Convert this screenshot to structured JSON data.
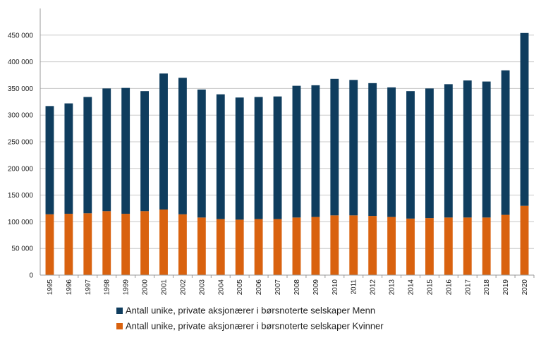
{
  "chart_data": {
    "type": "bar",
    "stacked": true,
    "categories": [
      "1995",
      "1996",
      "1997",
      "1998",
      "1999",
      "2000",
      "2001",
      "2002",
      "2003",
      "2004",
      "2005",
      "2006",
      "2007",
      "2008",
      "2009",
      "2010",
      "2011",
      "2012",
      "2013",
      "2014",
      "2015",
      "2016",
      "2017",
      "2018",
      "2019",
      "2020"
    ],
    "series": [
      {
        "name": "Antall unike, private aksjonærer i børsnoterte selskaper Kvinner",
        "color": "#d9620f",
        "values": [
          114000,
          115000,
          116000,
          120000,
          115000,
          120000,
          123000,
          114000,
          108000,
          105000,
          104000,
          105000,
          105000,
          108000,
          109000,
          112000,
          112000,
          111000,
          109000,
          106000,
          107000,
          108000,
          108000,
          108000,
          113000,
          130000
        ]
      },
      {
        "name": "Antall unike, private aksjonærer i børsnoterte selskaper Menn",
        "color": "#0f3d5e",
        "values": [
          203000,
          207000,
          218000,
          230000,
          236000,
          225000,
          255000,
          256000,
          240000,
          234000,
          229000,
          229000,
          230000,
          247000,
          247000,
          256000,
          254000,
          249000,
          243000,
          239000,
          243000,
          250000,
          257000,
          255000,
          271000,
          324000
        ]
      }
    ],
    "yticks": [
      "0",
      "50 000",
      "100 000",
      "150 000",
      "200 000",
      "250 000",
      "300 000",
      "350 000",
      "400 000",
      "450 000"
    ],
    "ylim": [
      0,
      500000
    ],
    "grid": true,
    "legend_position": "bottom"
  }
}
